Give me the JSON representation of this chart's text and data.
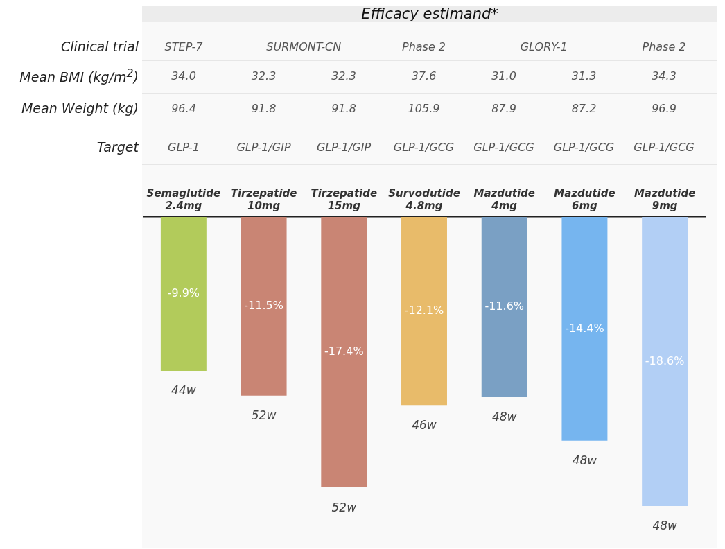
{
  "chart_data": [
    {
      "type": "other",
      "title": "Efficacy estimand*",
      "y_categories": [
        "Clinical trial",
        "Mean BMI (kg/m$^{2}$)",
        "Mean Weight (kg)",
        "Target"
      ],
      "cell_labels": [
        [
          "STEP-7",
          "SURMONT-CN",
          null,
          "Phase 2",
          "GLORY-1",
          null,
          "Phase 2"
        ],
        [
          "34.0",
          "32.3",
          "32.3",
          "37.6",
          "31.0",
          "31.3",
          "34.3"
        ],
        [
          "96.4",
          "91.8",
          "91.8",
          "105.9",
          "87.9",
          "87.2",
          "96.9"
        ],
        [
          "GLP-1",
          "GLP-1/GIP",
          "GLP-1/GIP",
          "GLP-1/GCG",
          "GLP-1/GCG",
          "GLP-1/GCG",
          "GLP-1/GCG"
        ]
      ]
    },
    {
      "type": "bar",
      "categories": [
        "Semaglutide 2.4mg",
        "Tirzepatide 10mg",
        "Tirzepatide 15mg",
        "Survodutide 4.8mg",
        "Mazdutide 4mg",
        "Mazdutide 6mg",
        "Mazdutide 9mg"
      ],
      "values": [
        -9.9,
        -11.5,
        -17.4,
        -12.1,
        -11.6,
        -14.4,
        -18.6
      ],
      "colors": [
        "#b2cb5b",
        "#c98574",
        "#c98574",
        "#e8bb6a",
        "#7aa0c4",
        "#76b5ef",
        "#b2cff5"
      ],
      "value_labels": [
        "-9.9%",
        "-11.5%",
        "-17.4%",
        "-12.1%",
        "-11.6%",
        "-14.4%",
        "-18.6%"
      ],
      "legend": false,
      "grid": false,
      "annotations": [
        {
          "text": "44w",
          "x": "Semaglutide 2.4mg",
          "y": -9.9
        },
        {
          "text": "52w",
          "x": "Tirzepatide 10mg",
          "y": -11.5
        },
        {
          "text": "52w",
          "x": "Tirzepatide 15mg",
          "y": -17.4
        },
        {
          "text": "46w",
          "x": "Survodutide 4.8mg",
          "y": -12.1
        },
        {
          "text": "48w",
          "x": "Mazdutide 4mg",
          "y": -11.6
        },
        {
          "text": "48w",
          "x": "Mazdutide 6mg",
          "y": -14.4
        },
        {
          "text": "48w",
          "x": "Mazdutide 9mg",
          "y": -18.6
        }
      ]
    }
  ]
}
